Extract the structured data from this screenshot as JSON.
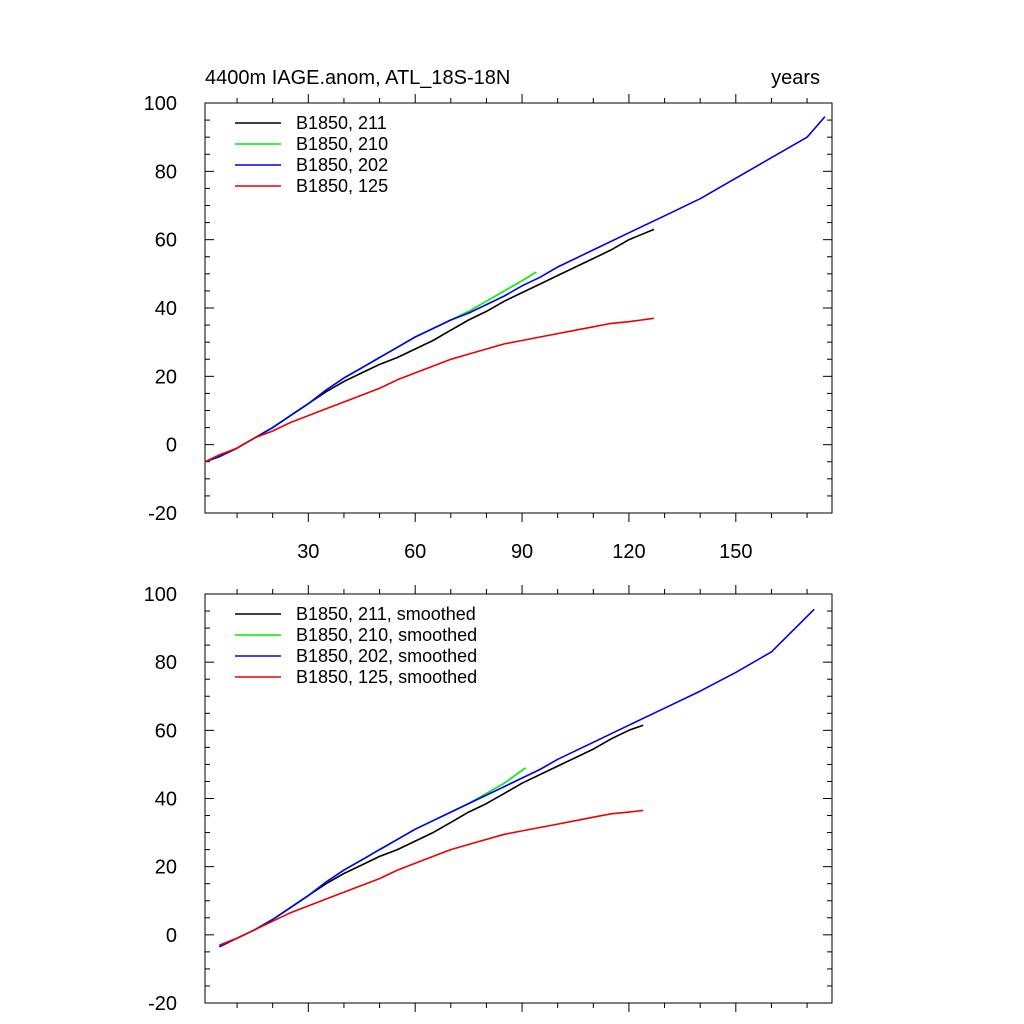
{
  "chart_data": [
    {
      "type": "line",
      "title": "4400m IAGE.anom, ATL_18S-18N",
      "right_title": "years",
      "xlabel": "",
      "ylabel": "",
      "xlim": [
        1,
        177
      ],
      "ylim": [
        -20,
        100
      ],
      "x_ticks": [
        30,
        60,
        90,
        120,
        150
      ],
      "x_tick_labels": [
        "30",
        "60",
        "90",
        "120",
        "150"
      ],
      "y_ticks": [
        -20,
        0,
        20,
        40,
        60,
        80,
        100
      ],
      "y_tick_labels": [
        "-20",
        "0",
        "20",
        "40",
        "60",
        "80",
        "100"
      ],
      "legend_position": "top-left",
      "series": [
        {
          "name": "B1850, 211",
          "color": "#000000",
          "x": [
            1,
            5,
            10,
            15,
            20,
            25,
            30,
            35,
            40,
            45,
            50,
            55,
            60,
            65,
            70,
            75,
            80,
            85,
            90,
            95,
            100,
            105,
            110,
            115,
            120,
            127
          ],
          "y": [
            -5,
            -3.5,
            -1,
            2,
            5,
            8.5,
            12,
            15.5,
            18.5,
            21,
            23.5,
            25.5,
            28,
            30.5,
            33.5,
            36.5,
            39,
            42,
            44.5,
            47,
            49.5,
            52,
            54.5,
            57,
            60,
            63
          ]
        },
        {
          "name": "B1850, 210",
          "color": "#00ee00",
          "x": [
            1,
            5,
            10,
            15,
            20,
            25,
            30,
            35,
            40,
            45,
            50,
            55,
            60,
            65,
            70,
            75,
            80,
            85,
            90,
            94
          ],
          "y": [
            -5,
            -3.5,
            -1,
            2,
            5,
            8.5,
            12,
            16,
            19.5,
            22.5,
            25.5,
            28.5,
            31.5,
            34,
            36.5,
            39,
            42,
            45,
            48,
            50.5
          ]
        },
        {
          "name": "B1850, 202",
          "color": "#0000ee",
          "x": [
            1,
            5,
            10,
            15,
            20,
            25,
            30,
            35,
            40,
            45,
            50,
            55,
            60,
            65,
            70,
            75,
            80,
            85,
            90,
            95,
            100,
            110,
            120,
            130,
            140,
            150,
            160,
            170,
            175
          ],
          "y": [
            -5,
            -3.5,
            -1,
            2,
            5,
            8.5,
            12,
            16,
            19.5,
            22.5,
            25.5,
            28.5,
            31.5,
            34,
            36.5,
            38.5,
            41,
            43.5,
            46.5,
            49,
            52,
            57,
            62,
            67,
            72,
            78,
            84,
            90,
            96
          ]
        },
        {
          "name": "B1850, 125",
          "color": "#ee0000",
          "x": [
            1,
            5,
            10,
            15,
            20,
            25,
            30,
            35,
            40,
            45,
            50,
            55,
            60,
            65,
            70,
            75,
            80,
            85,
            90,
            95,
            100,
            105,
            110,
            115,
            120,
            127
          ],
          "y": [
            -5,
            -3,
            -1,
            2,
            4,
            6.5,
            8.5,
            10.5,
            12.5,
            14.5,
            16.5,
            19,
            21,
            23,
            25,
            26.5,
            28,
            29.5,
            30.5,
            31.5,
            32.5,
            33.5,
            34.5,
            35.5,
            36,
            37
          ]
        }
      ]
    },
    {
      "type": "line",
      "title": "",
      "xlabel": "",
      "ylabel": "",
      "xlim": [
        1,
        177
      ],
      "ylim": [
        -20,
        100
      ],
      "x_ticks": [
        30,
        60,
        90,
        120,
        150
      ],
      "x_tick_labels": [],
      "y_ticks": [
        -20,
        0,
        20,
        40,
        60,
        80,
        100
      ],
      "y_tick_labels": [
        "-20",
        "0",
        "20",
        "40",
        "60",
        "80",
        "100"
      ],
      "legend_position": "top-left",
      "series": [
        {
          "name": "B1850, 211, smoothed",
          "color": "#000000",
          "x": [
            5,
            10,
            15,
            20,
            25,
            30,
            35,
            40,
            45,
            50,
            55,
            60,
            65,
            70,
            75,
            80,
            85,
            90,
            95,
            100,
            105,
            110,
            115,
            120,
            124
          ],
          "y": [
            -3.5,
            -1,
            1.5,
            4.5,
            8,
            11.5,
            15,
            18,
            20.5,
            23,
            25,
            27.5,
            30,
            33,
            36,
            38.5,
            41.5,
            44.5,
            47,
            49.5,
            52,
            54.5,
            57.5,
            60,
            61.5
          ]
        },
        {
          "name": "B1850, 210, smoothed",
          "color": "#00ee00",
          "x": [
            5,
            10,
            15,
            20,
            25,
            30,
            35,
            40,
            45,
            50,
            55,
            60,
            65,
            70,
            75,
            80,
            85,
            91
          ],
          "y": [
            -3.5,
            -1,
            1.5,
            4.5,
            8,
            11.5,
            15.5,
            19,
            22,
            25,
            28,
            31,
            33.5,
            36,
            38.5,
            41.5,
            44.5,
            49
          ]
        },
        {
          "name": "B1850, 202, smoothed",
          "color": "#0000ee",
          "x": [
            5,
            10,
            15,
            20,
            25,
            30,
            35,
            40,
            45,
            50,
            55,
            60,
            65,
            70,
            75,
            80,
            85,
            90,
            95,
            100,
            110,
            120,
            130,
            140,
            150,
            160,
            172
          ],
          "y": [
            -3.5,
            -1,
            1.5,
            4.5,
            8,
            11.5,
            15.5,
            19,
            22,
            25,
            28,
            31,
            33.5,
            36,
            38.5,
            41,
            43.5,
            46,
            48.5,
            51.5,
            56.5,
            61.5,
            66.5,
            71.5,
            77,
            83,
            95.5
          ]
        },
        {
          "name": "B1850, 125, smoothed",
          "color": "#ee0000",
          "x": [
            5,
            10,
            15,
            20,
            25,
            30,
            35,
            40,
            45,
            50,
            55,
            60,
            65,
            70,
            75,
            80,
            85,
            90,
            95,
            100,
            105,
            110,
            115,
            120,
            124
          ],
          "y": [
            -3,
            -1,
            1.5,
            4,
            6.5,
            8.5,
            10.5,
            12.5,
            14.5,
            16.5,
            19,
            21,
            23,
            25,
            26.5,
            28,
            29.5,
            30.5,
            31.5,
            32.5,
            33.5,
            34.5,
            35.5,
            36,
            36.5
          ]
        }
      ]
    }
  ]
}
